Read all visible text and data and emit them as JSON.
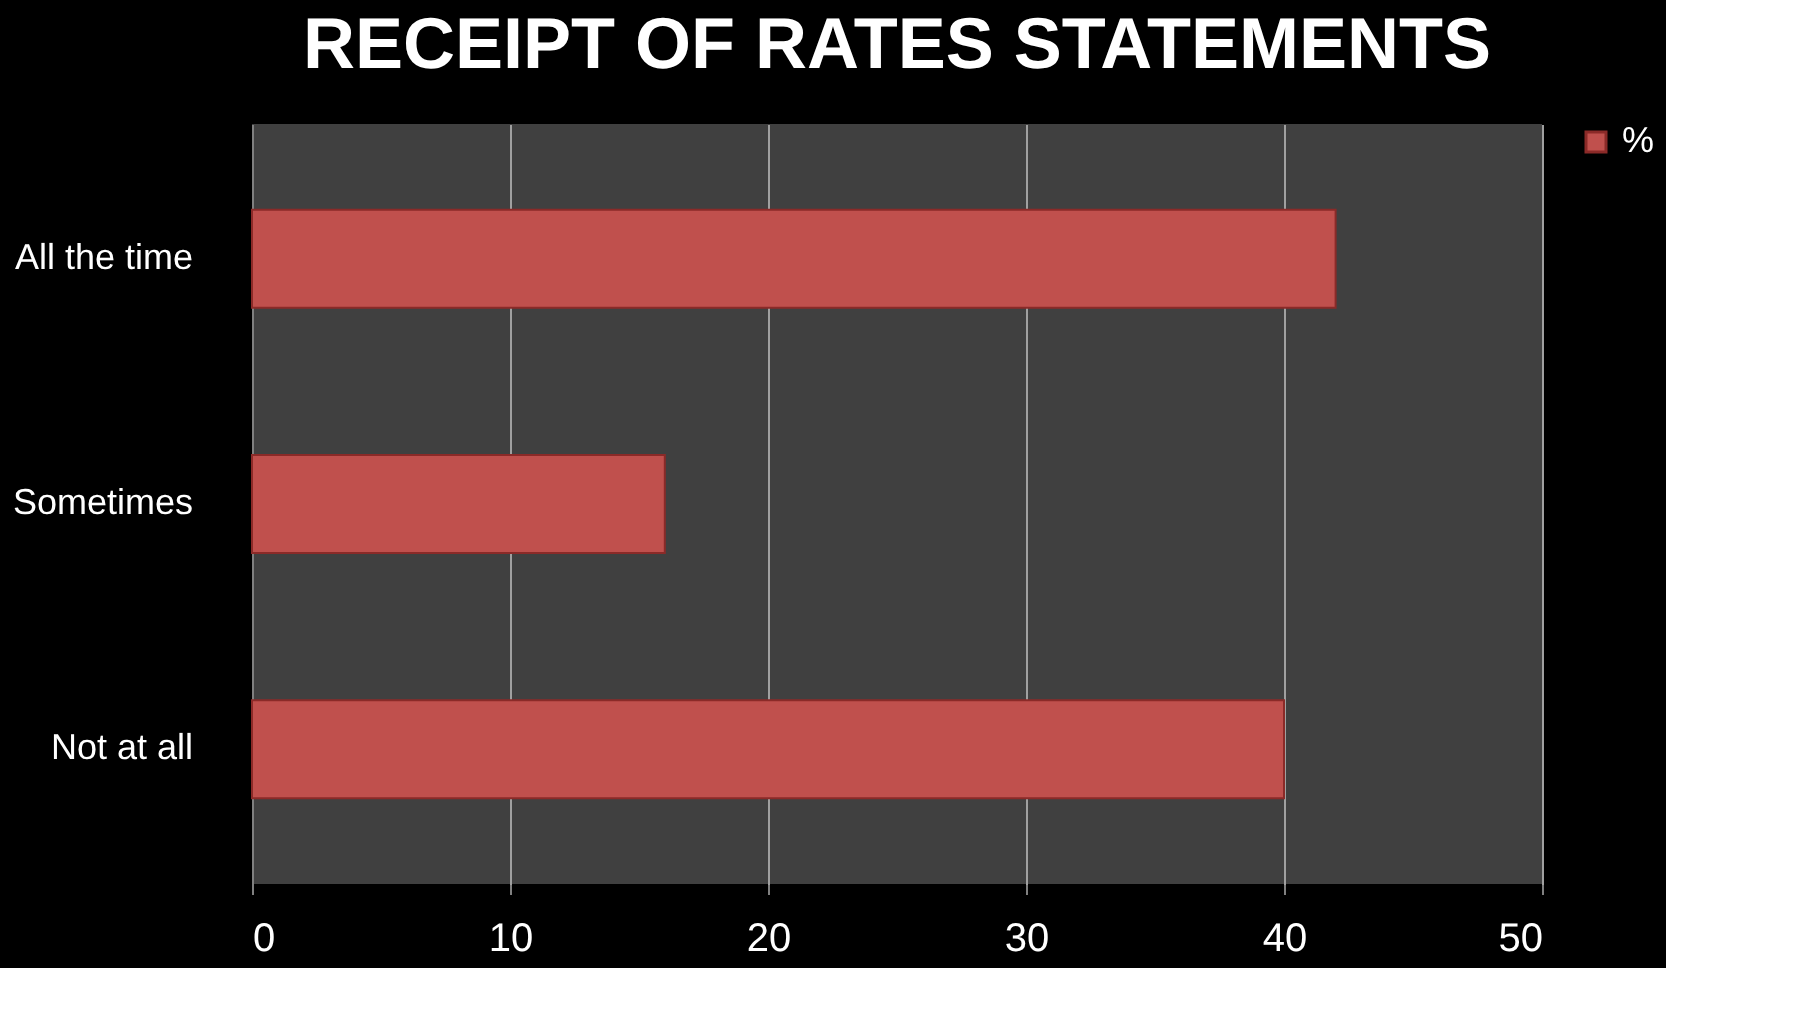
{
  "chart_data": {
    "type": "bar",
    "orientation": "horizontal",
    "title": "RECEIPT OF RATES STATEMENTS",
    "categories": [
      "All the time",
      "Sometimes",
      "Not at all"
    ],
    "series": [
      {
        "name": "%",
        "color": "#c0504d",
        "values": [
          42,
          16,
          40
        ]
      }
    ],
    "xlim": [
      0,
      50
    ],
    "xticks": [
      0,
      10,
      20,
      30,
      40,
      50
    ],
    "grid": "x",
    "legend": "right"
  }
}
